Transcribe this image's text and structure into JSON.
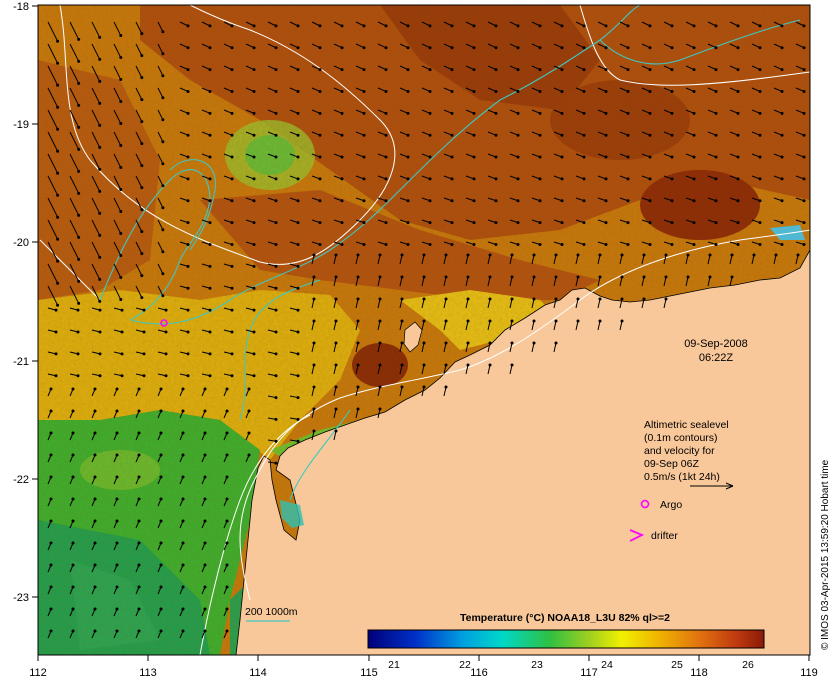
{
  "map": {
    "date": "09-Sep-2008",
    "time": "06:22Z",
    "lon_ticks": [
      "112",
      "113",
      "114",
      "115",
      "116",
      "117",
      "118",
      "119"
    ],
    "lat_ticks": [
      "-18",
      "-19",
      "-20",
      "-21",
      "-22",
      "-23"
    ],
    "lon_range": [
      112,
      119
    ],
    "lat_range": [
      -23.5,
      -18
    ],
    "legend": {
      "line1": "Altimetric sealevel",
      "line2": "(0.1m contours)",
      "line3": "and velocity for",
      "line4": "09-Sep 06Z",
      "line5": "0.5m/s (1kt 24h)",
      "argo": "Argo",
      "drifter": "drifter"
    },
    "isobath_label": "200  1000m",
    "colorbar": {
      "title": "Temperature (°C) NOAA18_L3U 82% ql>=2",
      "ticks": [
        "21",
        "22",
        "23",
        "24",
        "25",
        "26"
      ],
      "range": [
        20.5,
        26.3
      ]
    },
    "credit": "© IMOS 03-Apr-2015 13:59:20 Hobart time",
    "colors": {
      "land": "#f8c89a",
      "warm": "#a8420f",
      "mid": "#d89a10",
      "cool": "#46b832",
      "sealevel": "#3fc8c0",
      "argo": "#ff00ff"
    }
  }
}
